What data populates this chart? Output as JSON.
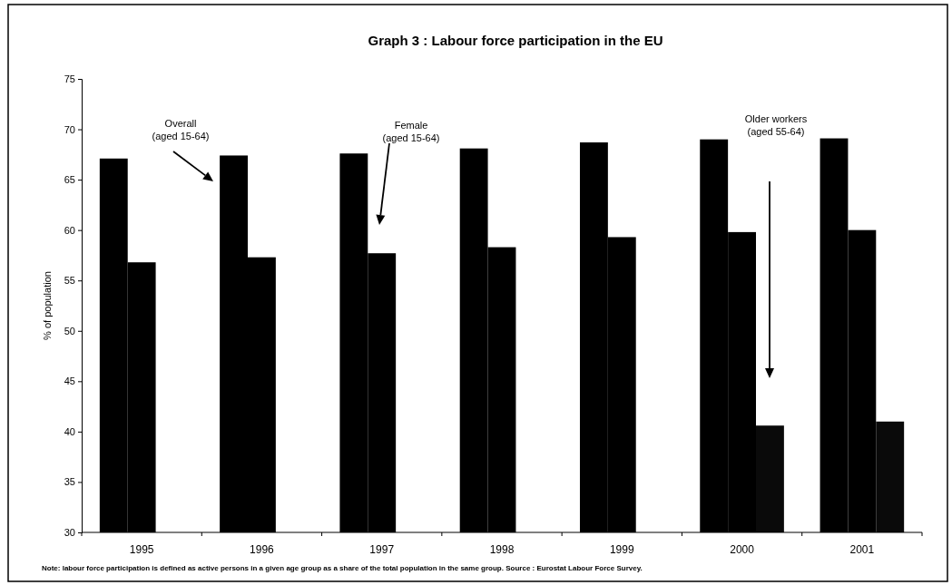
{
  "chart_data": {
    "type": "bar",
    "title": "Graph 3 : Labour force participation in the EU",
    "ylabel": "% of population",
    "categories": [
      "1995",
      "1996",
      "1997",
      "1998",
      "1999",
      "2000",
      "2001"
    ],
    "series": [
      {
        "color": "#000000",
        "values": [
          67.1,
          67.4,
          67.6,
          68.1,
          68.7,
          69.0,
          69.1
        ]
      },
      {
        "color": "#000000",
        "values": [
          56.8,
          57.3,
          57.7,
          58.3,
          59.3,
          59.8,
          60.0
        ]
      },
      {
        "color": "#0a0a0a",
        "values": [
          null,
          null,
          null,
          null,
          null,
          40.6,
          41.0
        ]
      }
    ],
    "ylim": [
      30,
      75
    ],
    "yticks": [
      30,
      35,
      40,
      45,
      50,
      55,
      60,
      65,
      70,
      75
    ],
    "grid": false,
    "legend": false,
    "annotations": [
      "Overall\n(aged 15-64)",
      "Female\n(aged 15-64)",
      "Older workers\n(aged 55-64)",
      "Note: labour force participation is defined as active persons in a given age group as a share of the total population in the same group. Source : Eurostat Labour Force Survey."
    ]
  }
}
